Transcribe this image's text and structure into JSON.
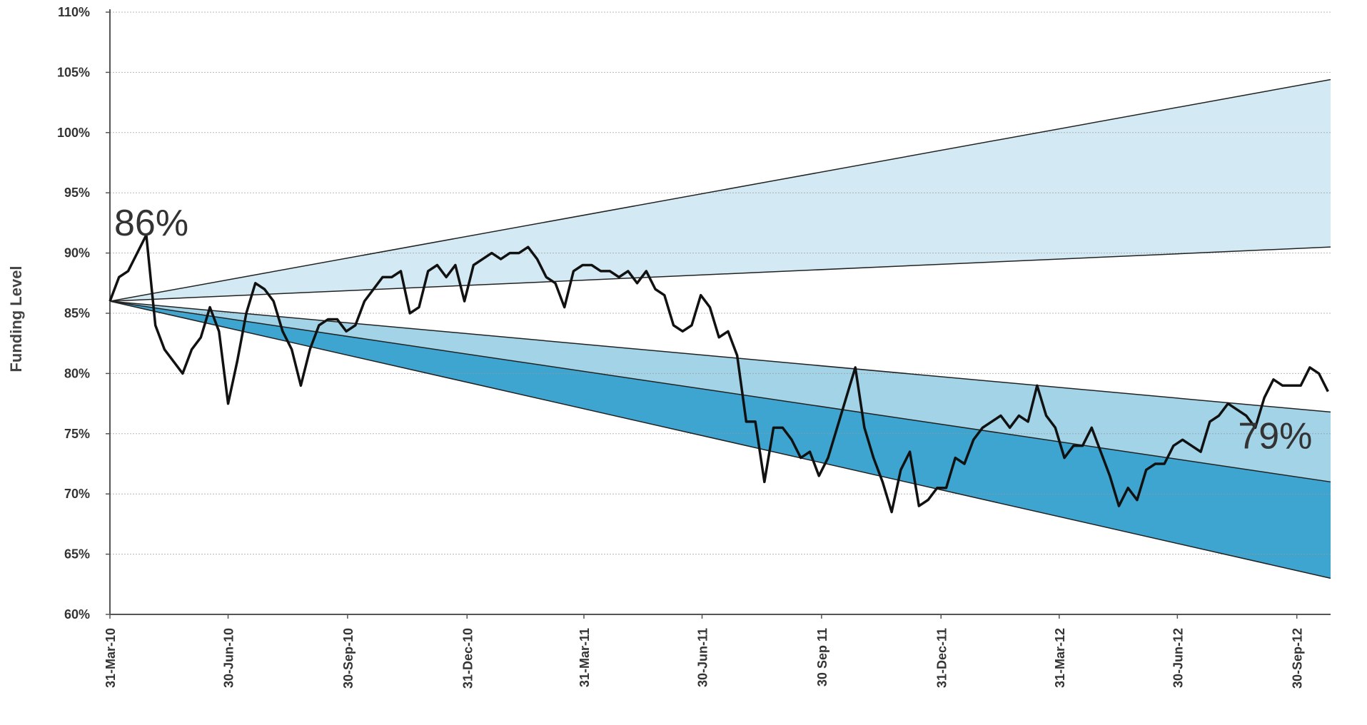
{
  "chart_data": {
    "type": "line",
    "ylabel": "Funding Level",
    "annotations": [
      {
        "text": "86%",
        "x": "2010-03-31",
        "y": 86
      },
      {
        "text": "79%",
        "x": "2012-10-24",
        "y": 79
      }
    ],
    "xlim": [
      "2010-03-31",
      "2012-10-26"
    ],
    "xticks": [
      {
        "value": "2010-03-31",
        "label": "31-Mar-10"
      },
      {
        "value": "2010-06-30",
        "label": "30-Jun-10"
      },
      {
        "value": "2010-09-30",
        "label": "30-Sep-10"
      },
      {
        "value": "2010-12-31",
        "label": "31-Dec-10"
      },
      {
        "value": "2011-03-31",
        "label": "31-Mar-11"
      },
      {
        "value": "2011-06-30",
        "label": "30-Jun-11"
      },
      {
        "value": "2011-09-30",
        "label": "30 Sep 11"
      },
      {
        "value": "2011-12-31",
        "label": "31-Dec-11"
      },
      {
        "value": "2012-03-31",
        "label": "31-Mar-12"
      },
      {
        "value": "2012-06-30",
        "label": "30-Jun-12"
      },
      {
        "value": "2012-09-30",
        "label": "30-Sep-12"
      }
    ],
    "ylim": [
      60,
      110
    ],
    "yticks": [
      {
        "value": 60,
        "label": "60%"
      },
      {
        "value": 65,
        "label": "65%"
      },
      {
        "value": 70,
        "label": "70%"
      },
      {
        "value": 75,
        "label": "75%"
      },
      {
        "value": 80,
        "label": "80%"
      },
      {
        "value": 85,
        "label": "85%"
      },
      {
        "value": 90,
        "label": "90%"
      },
      {
        "value": 95,
        "label": "95%"
      },
      {
        "value": 100,
        "label": "100%"
      },
      {
        "value": 105,
        "label": "105%"
      },
      {
        "value": 110,
        "label": "110%"
      }
    ],
    "grid": true,
    "bands": [
      {
        "x": [
          "2010-03-31",
          "2012-10-26"
        ],
        "values": [
          86,
          104.4
        ],
        "color": "#222222",
        "fill": "#d3e9f3"
      },
      {
        "x": [
          "2010-03-31",
          "2012-10-26"
        ],
        "values": [
          86,
          90.5
        ],
        "color": "#222222"
      },
      {
        "x": [
          "2010-03-31",
          "2012-10-26"
        ],
        "values": [
          86,
          76.8
        ],
        "color": "#222222",
        "fill": "#a3d3e7"
      },
      {
        "x": [
          "2010-03-31",
          "2012-10-26"
        ],
        "values": [
          86,
          71.0
        ],
        "color": "#222222",
        "fill": "#3da5cf"
      },
      {
        "x": [
          "2010-03-31",
          "2012-10-26"
        ],
        "values": [
          86,
          63.0
        ],
        "color": "#222222"
      }
    ],
    "series": [
      {
        "color": "#111111",
        "x": [
          "2010-03-31",
          "2010-04-07",
          "2010-04-14",
          "2010-04-21",
          "2010-04-28",
          "2010-05-05",
          "2010-05-12",
          "2010-05-19",
          "2010-05-26",
          "2010-06-02",
          "2010-06-09",
          "2010-06-16",
          "2010-06-23",
          "2010-06-30",
          "2010-07-07",
          "2010-07-14",
          "2010-07-21",
          "2010-07-28",
          "2010-08-04",
          "2010-08-11",
          "2010-08-18",
          "2010-08-25",
          "2010-09-01",
          "2010-09-08",
          "2010-09-15",
          "2010-09-22",
          "2010-09-29",
          "2010-10-06",
          "2010-10-13",
          "2010-10-20",
          "2010-10-27",
          "2010-11-03",
          "2010-11-10",
          "2010-11-17",
          "2010-11-24",
          "2010-12-01",
          "2010-12-08",
          "2010-12-15",
          "2010-12-22",
          "2010-12-29",
          "2011-01-05",
          "2011-01-12",
          "2011-01-19",
          "2011-01-26",
          "2011-02-02",
          "2011-02-09",
          "2011-02-16",
          "2011-02-23",
          "2011-03-02",
          "2011-03-09",
          "2011-03-16",
          "2011-03-23",
          "2011-03-30",
          "2011-04-06",
          "2011-04-13",
          "2011-04-20",
          "2011-04-27",
          "2011-05-04",
          "2011-05-11",
          "2011-05-18",
          "2011-05-25",
          "2011-06-01",
          "2011-06-08",
          "2011-06-15",
          "2011-06-22",
          "2011-06-29",
          "2011-07-06",
          "2011-07-13",
          "2011-07-20",
          "2011-07-27",
          "2011-08-03",
          "2011-08-10",
          "2011-08-17",
          "2011-08-24",
          "2011-08-31",
          "2011-09-07",
          "2011-09-14",
          "2011-09-21",
          "2011-09-28",
          "2011-10-05",
          "2011-10-12",
          "2011-10-19",
          "2011-10-26",
          "2011-11-02",
          "2011-11-09",
          "2011-11-16",
          "2011-11-23",
          "2011-11-30",
          "2011-12-07",
          "2011-12-14",
          "2011-12-21",
          "2011-12-28",
          "2012-01-04",
          "2012-01-11",
          "2012-01-18",
          "2012-01-25",
          "2012-02-01",
          "2012-02-08",
          "2012-02-15",
          "2012-02-22",
          "2012-02-29",
          "2012-03-07",
          "2012-03-14",
          "2012-03-21",
          "2012-03-28",
          "2012-04-04",
          "2012-04-11",
          "2012-04-18",
          "2012-04-25",
          "2012-05-02",
          "2012-05-09",
          "2012-05-16",
          "2012-05-23",
          "2012-05-30",
          "2012-06-06",
          "2012-06-13",
          "2012-06-20",
          "2012-06-27",
          "2012-07-04",
          "2012-07-11",
          "2012-07-18",
          "2012-07-25",
          "2012-08-01",
          "2012-08-08",
          "2012-08-15",
          "2012-08-22",
          "2012-08-29",
          "2012-09-05",
          "2012-09-12",
          "2012-09-19",
          "2012-09-26",
          "2012-10-03",
          "2012-10-10",
          "2012-10-17",
          "2012-10-24"
        ],
        "values": [
          86,
          88,
          88.5,
          90,
          91.5,
          84,
          82,
          81,
          80,
          82,
          83,
          85.5,
          83.5,
          77.5,
          81,
          85,
          87.5,
          87,
          86,
          83.5,
          82,
          79,
          82,
          84,
          84.5,
          84.5,
          83.5,
          84,
          86,
          87,
          88,
          88,
          88.5,
          85,
          85.5,
          88.5,
          89,
          88,
          89,
          86,
          89,
          89.5,
          90,
          89.5,
          90,
          90,
          90.5,
          89.5,
          88,
          87.5,
          85.5,
          88.5,
          89,
          89,
          88.5,
          88.5,
          88,
          88.5,
          87.5,
          88.5,
          87,
          86.5,
          84,
          83.5,
          84,
          86.5,
          85.5,
          83,
          83.5,
          81.5,
          76,
          76,
          71,
          75.5,
          75.5,
          74.5,
          73,
          73.5,
          71.5,
          73,
          75.5,
          78,
          80.5,
          75.5,
          73,
          71,
          68.5,
          72,
          73.5,
          69,
          69.5,
          70.5,
          70.5,
          73,
          72.5,
          74.5,
          75.5,
          76,
          76.5,
          75.5,
          76.5,
          76,
          79,
          76.5,
          75.5,
          73,
          74,
          74,
          75.5,
          73.5,
          71.5,
          69,
          70.5,
          69.5,
          72,
          72.5,
          72.5,
          74,
          74.5,
          74,
          73.5,
          76,
          76.5,
          77.5,
          77,
          76.5,
          75.5,
          78,
          79.5,
          79,
          79,
          79,
          80.5,
          80,
          78.5
        ]
      }
    ]
  }
}
